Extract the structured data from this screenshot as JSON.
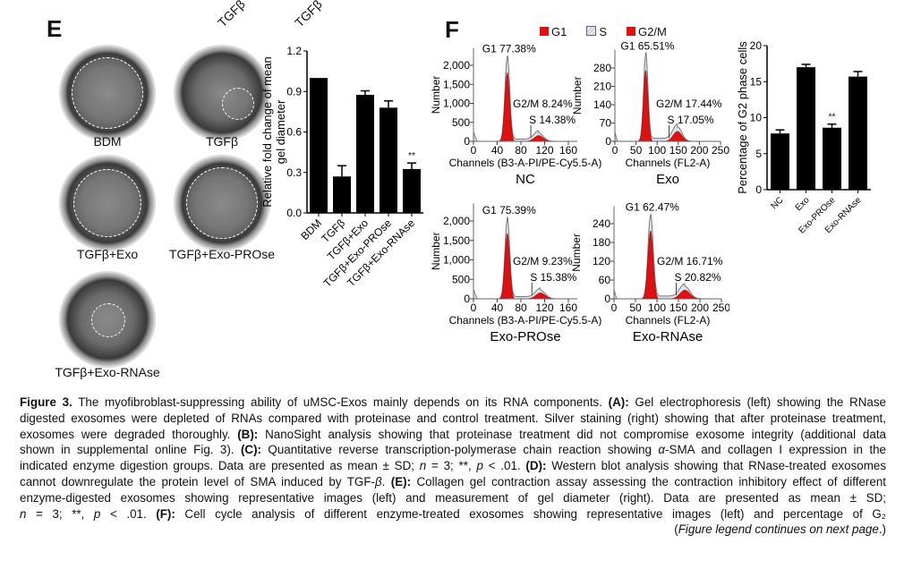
{
  "panel_e": {
    "letter": "E",
    "top_rotated_labels": [
      "TGFβ",
      "TGFβ"
    ],
    "wells": [
      {
        "label": "BDM"
      },
      {
        "label": "TGFβ"
      },
      {
        "label": "TGFβ+Exo"
      },
      {
        "label": "TGFβ+Exo-PROse"
      },
      {
        "label": "TGFβ+Exo-RNAse"
      }
    ]
  },
  "panel_f": {
    "letter": "F",
    "legend": [
      {
        "label": "G1",
        "color": "#e01010"
      },
      {
        "label": "S",
        "color": "#c8d0e8"
      },
      {
        "label": "G2/M",
        "color": "#e01010"
      }
    ]
  },
  "chart_data": [
    {
      "type": "bar",
      "ylabel": "Relative fold change of mean gel diameter",
      "categories": [
        "BDM",
        "TGFβ",
        "TGFβ+Exo",
        "TGFβ+Exo-PROse",
        "TGFβ+Exo-RNAse"
      ],
      "values": [
        1.0,
        0.27,
        0.875,
        0.78,
        0.325
      ],
      "errors": [
        0,
        0.08,
        0.03,
        0.05,
        0.045
      ],
      "annotations": [
        "",
        "",
        "",
        "",
        "**"
      ],
      "ylim": [
        0,
        1.2
      ],
      "yticks": [
        "0.0",
        "0.3",
        "0.6",
        "0.9",
        "1.2"
      ],
      "color": "#000000"
    },
    {
      "type": "area",
      "title": "NC",
      "xlabel": "Channels (B3-A-PI/PE-Cy5.5-A)",
      "ylabel": "Number",
      "xticks": [
        "0",
        "40",
        "80",
        "120",
        "160"
      ],
      "yticks": [
        "0",
        "500",
        "1,000",
        "1,500",
        "2,000"
      ],
      "xlim": [
        0,
        175
      ],
      "ylim": [
        0,
        2450
      ],
      "peaks": {
        "g1": 57,
        "g1_height": 2200,
        "g2": 110,
        "g2_height": 220
      },
      "labels": {
        "g1": "G1 77.38%",
        "s": "S 14.38%",
        "g2": "G2/M 8.24%"
      }
    },
    {
      "type": "area",
      "title": "Exo",
      "xlabel": "Channels (FL2-A)",
      "ylabel": "Number",
      "xticks": [
        "0",
        "50",
        "100",
        "150",
        "200",
        "250"
      ],
      "yticks": [
        "0",
        "70",
        "140",
        "210",
        "280"
      ],
      "xlim": [
        0,
        250
      ],
      "ylim": [
        0,
        350
      ],
      "peaks": {
        "g1": 73,
        "g1_height": 330,
        "g2": 148,
        "g2_height": 55
      },
      "labels": {
        "g1": "G1 65.51%",
        "s": "S 17.05%",
        "g2": "G2/M 17.44%"
      }
    },
    {
      "type": "area",
      "title": "Exo-PROse",
      "xlabel": "Channels (B3-A-PI/PE-Cy5.5-A)",
      "ylabel": "Number",
      "xticks": [
        "0",
        "40",
        "80",
        "120",
        "160"
      ],
      "yticks": [
        "0",
        "500",
        "1,000",
        "1,500",
        "2,000"
      ],
      "xlim": [
        0,
        175
      ],
      "ylim": [
        0,
        2450
      ],
      "peaks": {
        "g1": 57,
        "g1_height": 2050,
        "g2": 113,
        "g2_height": 220
      },
      "labels": {
        "g1": "G1 75.39%",
        "s": "S 15.38%",
        "g2": "G2/M 9.23%"
      }
    },
    {
      "type": "area",
      "title": "Exo-RNAse",
      "xlabel": "Channels (FL2-A)",
      "ylabel": "Number",
      "xticks": [
        "0",
        "50",
        "100",
        "150",
        "200",
        "250"
      ],
      "yticks": [
        "0",
        "60",
        "120",
        "180",
        "240"
      ],
      "xlim": [
        0,
        250
      ],
      "ylim": [
        0,
        295
      ],
      "peaks": {
        "g1": 85,
        "g1_height": 265,
        "g2": 165,
        "g2_height": 40
      },
      "labels": {
        "g1": "G1 62.47%",
        "s": "S 20.82%",
        "g2": "G2/M 16.71%"
      }
    },
    {
      "type": "bar",
      "ylabel": "Percentage of G2 phase cells",
      "categories": [
        "NC",
        "Exo",
        "Exo-PROse",
        "Exo-RNAse"
      ],
      "values": [
        7.8,
        17.0,
        8.6,
        15.7
      ],
      "errors": [
        0.5,
        0.4,
        0.5,
        0.7
      ],
      "annotations": [
        "",
        "",
        "**",
        ""
      ],
      "ylim": [
        0,
        20
      ],
      "yticks": [
        "0",
        "5",
        "10",
        "15",
        "20"
      ],
      "color": "#000000"
    }
  ],
  "caption": {
    "lines": [
      [
        {
          "t": "Figure 3.",
          "b": 1
        },
        {
          "t": "    The myofibroblast-suppressing ability of uMSC-Exos mainly depends on its RNA components. "
        },
        {
          "t": "(A):",
          "b": 1
        },
        {
          "t": " Gel electrophoresis (left) showing the RNase"
        }
      ],
      [
        {
          "t": "digested exosomes were depleted of RNAs compared with proteinase and control treatment. Silver staining (right) showing that after proteinase treatment,"
        }
      ],
      [
        {
          "t": "exosomes were degraded thoroughly. "
        },
        {
          "t": "(B):",
          "b": 1
        },
        {
          "t": " NanoSight analysis showing that proteinase treatment did not compromise exosome integrity (additional data"
        }
      ],
      [
        {
          "t": "shown in supplemental online Fig. 3). "
        },
        {
          "t": "(C):",
          "b": 1
        },
        {
          "t": " Quantitative reverse transcription-polymerase chain reaction showing "
        },
        {
          "t": "α",
          "i": 1
        },
        {
          "t": "-SMA and collagen I expression in the"
        }
      ],
      [
        {
          "t": "indicated enzyme digestion groups. Data are presented as mean ± SD; "
        },
        {
          "t": "n",
          "i": 1
        },
        {
          "t": " = 3; **, "
        },
        {
          "t": "p",
          "i": 1
        },
        {
          "t": " < .01. "
        },
        {
          "t": "(D):",
          "b": 1
        },
        {
          "t": " Western blot analysis showing that RNase-treated exosomes"
        }
      ],
      [
        {
          "t": "cannot downregulate the protein level of SMA induced by TGF-"
        },
        {
          "t": "β",
          "i": 1
        },
        {
          "t": ". "
        },
        {
          "t": "(E):",
          "b": 1
        },
        {
          "t": " Collagen gel contraction assay assessing the contraction inhibitory effect of different"
        }
      ],
      [
        {
          "t": "enzyme-digested exosomes showing representative images (left) and measurement of gel diameter (right). Data are presented as mean ± SD;"
        }
      ],
      [
        {
          "t": "n",
          "i": 1
        },
        {
          "t": " = 3; **, "
        },
        {
          "t": "p",
          "i": 1
        },
        {
          "t": " < .01. "
        },
        {
          "t": "(F):",
          "b": 1
        },
        {
          "t": " Cell cycle analysis of different enzyme-treated exosomes showing representative images (left) and percentage of G₂"
        }
      ],
      [
        {
          "t": "("
        },
        {
          "t": "Figure legend continues on next page",
          "i": 1
        },
        {
          "t": ".)"
        }
      ]
    ]
  }
}
